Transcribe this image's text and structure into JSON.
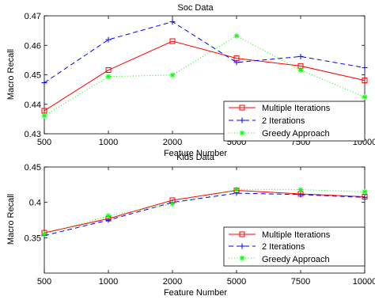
{
  "chart_data": [
    {
      "type": "line",
      "title": "Soc Data",
      "xlabel": "Feature Number",
      "ylabel": "Macro Recall",
      "categories": [
        "500",
        "1000",
        "2000",
        "5000",
        "7500",
        "10000"
      ],
      "ylim": [
        0.43,
        0.47
      ],
      "yticks": [
        "0.43",
        "0.44",
        "0.45",
        "0.46",
        "0.47"
      ],
      "grid": false,
      "legend_position": "lower-right",
      "series": [
        {
          "name": "Multiple Iterations",
          "color": "#ff0000",
          "dash": "solid",
          "marker": "square",
          "values": [
            0.4378,
            0.4516,
            0.4614,
            0.4556,
            0.453,
            0.4481
          ]
        },
        {
          "name": "2 Iterations",
          "color": "#0000ff",
          "dash": "dashed",
          "marker": "plus",
          "values": [
            0.4473,
            0.4619,
            0.468,
            0.4542,
            0.4562,
            0.4524
          ]
        },
        {
          "name": "Greedy Approach",
          "color": "#00ff00",
          "dash": "dotted",
          "marker": "asterisk",
          "values": [
            0.4361,
            0.4494,
            0.4499,
            0.4632,
            0.4516,
            0.4425
          ]
        }
      ]
    },
    {
      "type": "line",
      "title": "Kids Data",
      "xlabel": "Feature Number",
      "ylabel": "Macro Recall",
      "categories": [
        "500",
        "1000",
        "2000",
        "5000",
        "7500",
        "10000"
      ],
      "ylim": [
        0.3,
        0.45
      ],
      "yticks": [
        "0.35",
        "0.4",
        "0.45"
      ],
      "grid": false,
      "legend_position": "lower-right",
      "series": [
        {
          "name": "Multiple Iterations",
          "color": "#ff0000",
          "dash": "solid",
          "marker": "square",
          "values": [
            0.357,
            0.377,
            0.403,
            0.417,
            0.412,
            0.408
          ]
        },
        {
          "name": "2 Iterations",
          "color": "#0000ff",
          "dash": "dashed",
          "marker": "plus",
          "values": [
            0.353,
            0.375,
            0.4,
            0.413,
            0.411,
            0.407
          ]
        },
        {
          "name": "Greedy Approach",
          "color": "#00ff00",
          "dash": "dotted",
          "marker": "asterisk",
          "values": [
            0.355,
            0.381,
            0.398,
            0.418,
            0.418,
            0.415
          ]
        }
      ]
    }
  ]
}
